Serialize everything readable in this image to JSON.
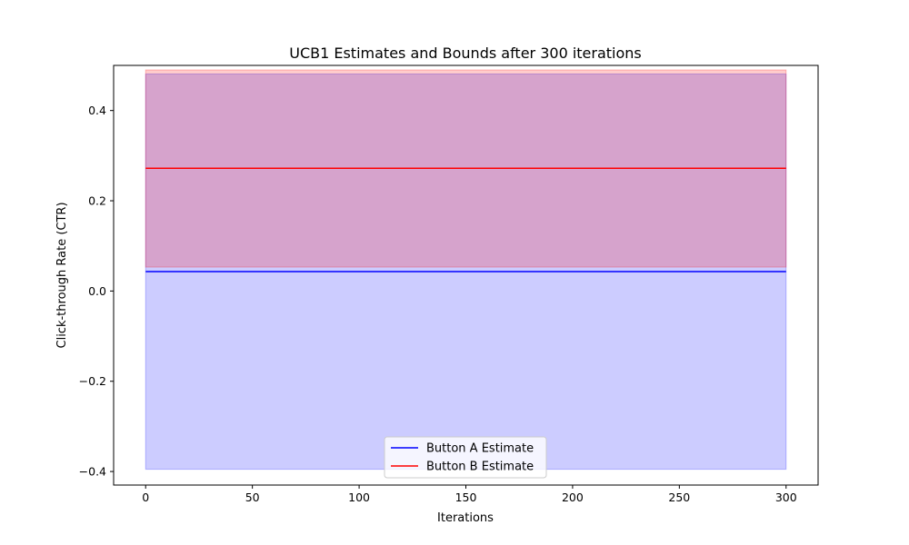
{
  "chart_data": {
    "type": "line",
    "title": "UCB1 Estimates and Bounds after 300 iterations",
    "xlabel": "Iterations",
    "ylabel": "Click-through Rate (CTR)",
    "xlim": [
      -15,
      315
    ],
    "ylim": [
      -0.43,
      0.5
    ],
    "x_ticks": [
      0,
      50,
      100,
      150,
      200,
      250,
      300
    ],
    "x_tick_labels": [
      "0",
      "50",
      "100",
      "150",
      "200",
      "250",
      "300"
    ],
    "y_ticks": [
      -0.4,
      -0.2,
      0.0,
      0.2,
      0.4
    ],
    "y_tick_labels": [
      "−0.4",
      "−0.2",
      "0.0",
      "0.2",
      "0.4"
    ],
    "grid": false,
    "legend_position": "lower center",
    "series": [
      {
        "name": "Button A Estimate",
        "color": "#0000ff",
        "x": [
          0,
          300
        ],
        "values": [
          0.043,
          0.043
        ],
        "band": {
          "lower": -0.395,
          "upper": 0.481,
          "color": "#0000ff",
          "opacity": 0.2
        }
      },
      {
        "name": "Button B Estimate",
        "color": "#ff0000",
        "x": [
          0,
          300
        ],
        "values": [
          0.272,
          0.272
        ],
        "band": {
          "lower": 0.053,
          "upper": 0.49,
          "color": "#ff0000",
          "opacity": 0.2
        }
      }
    ]
  }
}
